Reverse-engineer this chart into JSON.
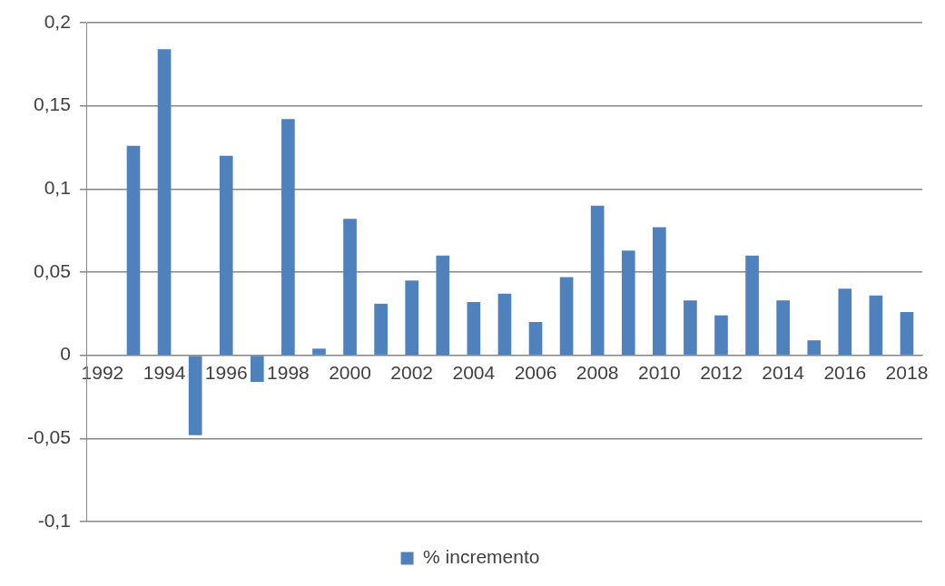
{
  "chart_data": {
    "type": "bar",
    "categories": [
      "1992",
      null,
      "1994",
      null,
      "1996",
      null,
      "1998",
      null,
      "2000",
      null,
      "2002",
      null,
      "2004",
      null,
      "2006",
      null,
      "2008",
      null,
      "2010",
      null,
      "2012",
      null,
      "2014",
      null,
      "2016",
      null,
      "2018"
    ],
    "series": [
      {
        "name": "% incremento",
        "color": "#4f81bd",
        "values": [
          null,
          0.126,
          0.184,
          -0.048,
          0.12,
          -0.016,
          0.142,
          0.004,
          0.082,
          0.031,
          0.045,
          0.06,
          0.032,
          0.037,
          0.02,
          0.047,
          0.09,
          0.063,
          0.077,
          0.033,
          0.024,
          0.06,
          0.033,
          0.009,
          0.04,
          0.036,
          0.026
        ]
      }
    ],
    "ylim": [
      -0.1,
      0.2
    ],
    "yticks": [
      {
        "value": -0.1,
        "label": "-0,1"
      },
      {
        "value": -0.05,
        "label": "-0,05"
      },
      {
        "value": 0,
        "label": "0"
      },
      {
        "value": 0.05,
        "label": "0,05"
      },
      {
        "value": 0.1,
        "label": "0,1"
      },
      {
        "value": 0.15,
        "label": "0,15"
      },
      {
        "value": 0.2,
        "label": "0,2"
      }
    ],
    "grid": "y",
    "legend": "bottom"
  }
}
